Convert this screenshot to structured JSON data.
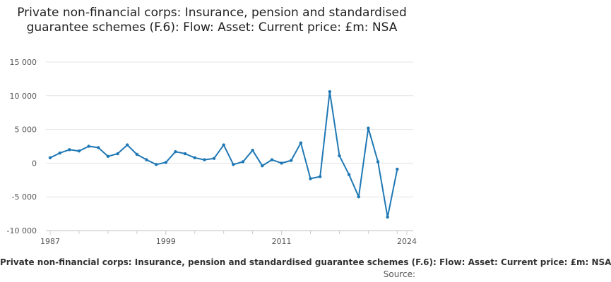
{
  "chart_data": {
    "type": "line",
    "title": "Private non-financial corps: Insurance, pension and standardised guarantee schemes (F.6): Flow: Asset: Current price: £m: NSA",
    "xlabel": "",
    "ylabel": "",
    "series": [
      {
        "name": "Private non-financial corps: Insurance, pension and standardised guarantee schemes (F.6): Flow: Asset: Current price: £m: NSA",
        "color": "#1f78b4",
        "x": [
          1987,
          1988,
          1989,
          1990,
          1991,
          1992,
          1993,
          1994,
          1995,
          1996,
          1997,
          1998,
          1999,
          2000,
          2001,
          2002,
          2003,
          2004,
          2005,
          2006,
          2007,
          2008,
          2009,
          2010,
          2011,
          2012,
          2013,
          2014,
          2015,
          2016,
          2017,
          2018,
          2019,
          2020,
          2021,
          2022,
          2023
        ],
        "values": [
          800,
          1500,
          2000,
          1800,
          2500,
          2300,
          1000,
          1400,
          2700,
          1300,
          500,
          -200,
          100,
          1700,
          1400,
          800,
          500,
          700,
          2700,
          -200,
          200,
          1900,
          -400,
          500,
          0,
          400,
          3000,
          -2300,
          -2000,
          10600,
          1100,
          -1700,
          -5000,
          5200,
          200,
          -8000,
          -900
        ]
      }
    ],
    "ylim": [
      -10000,
      15000
    ],
    "xlim": [
      1987,
      2024
    ],
    "yticks": [
      -10000,
      -5000,
      0,
      5000,
      10000,
      15000
    ],
    "ytick_labels": [
      "-10 000",
      "-5 000",
      "0",
      "5 000",
      "10 000",
      "15 000"
    ],
    "xticks": [
      1987,
      1999,
      2011,
      2024
    ],
    "xtick_labels": [
      "1987",
      "1999",
      "2011",
      "2024"
    ],
    "grid": "horizontal",
    "legend": {
      "position": "bottom",
      "label": "Private non-financial corps: Insurance, pension and standardised guarantee schemes (F.6): Flow: Asset: Current price: £m: NSA"
    },
    "source_label": "Source:"
  }
}
